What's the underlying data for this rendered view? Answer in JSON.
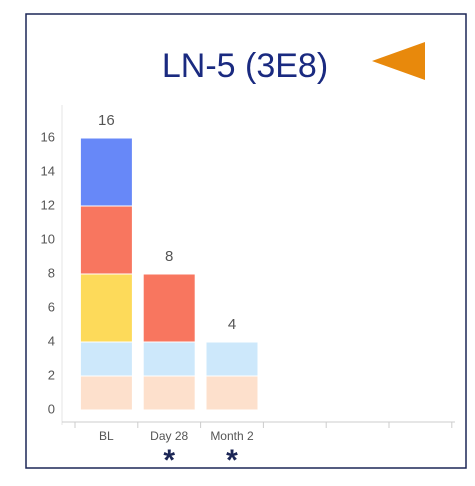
{
  "chart_data": {
    "type": "stacked_bar",
    "title": "LN-5 (3E8)",
    "categories": [
      "BL",
      "Day 28",
      "Month 2"
    ],
    "series": [
      {
        "color": "#fde0cc",
        "values": [
          2,
          2,
          2
        ]
      },
      {
        "color": "#cde8fb",
        "values": [
          2,
          2,
          2
        ]
      },
      {
        "color": "#fdda5a",
        "values": [
          4,
          0,
          0
        ]
      },
      {
        "color": "#f8765f",
        "values": [
          4,
          4,
          0
        ]
      },
      {
        "color": "#6788f8",
        "values": [
          4,
          0,
          0
        ]
      }
    ],
    "totals": [
      16,
      8,
      4
    ],
    "annotations": [
      {
        "x": "Day 28",
        "text": "*"
      },
      {
        "x": "Month 2",
        "text": "*"
      }
    ],
    "ylim": [
      -0.6,
      17.5
    ],
    "yticks": [
      0,
      2,
      4,
      6,
      8,
      10,
      12,
      14,
      16
    ],
    "grid": false
  }
}
